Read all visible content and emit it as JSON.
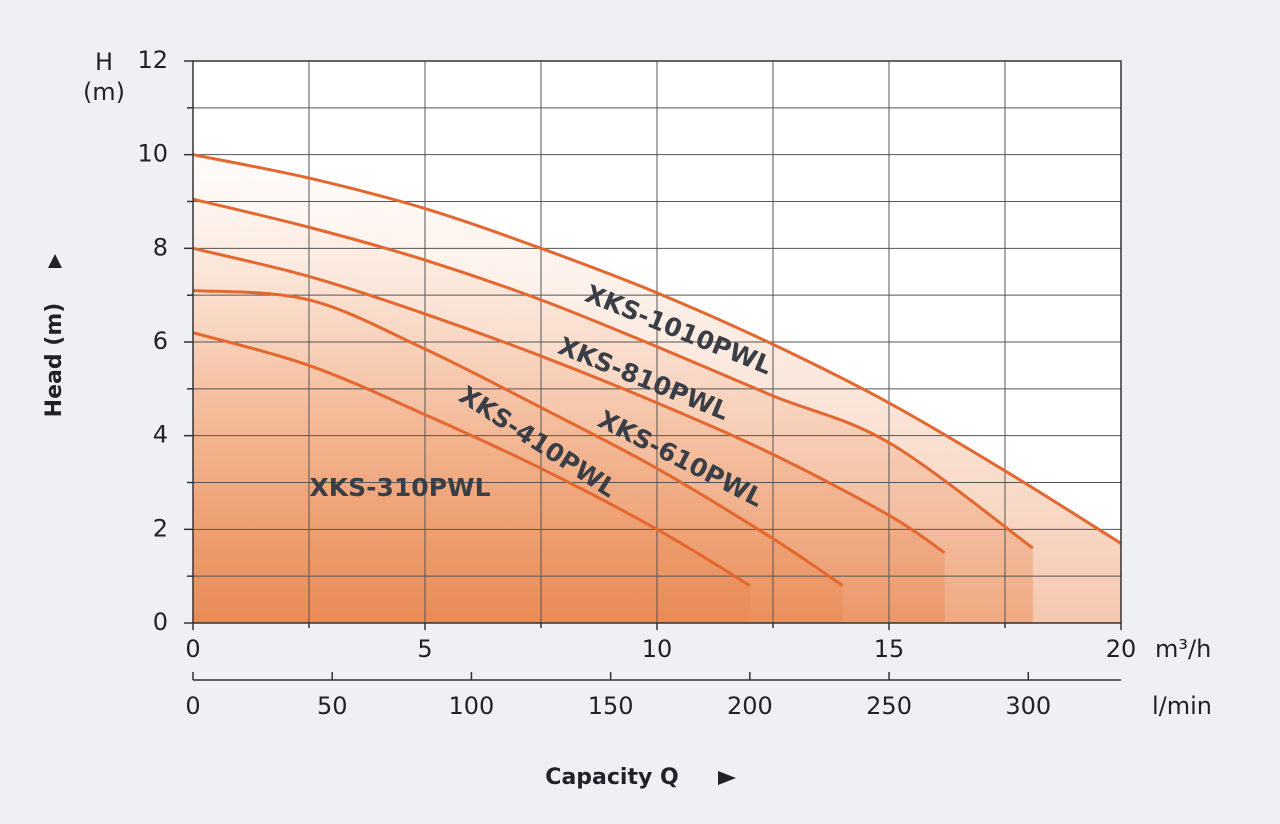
{
  "chart_data": {
    "type": "line",
    "y_label_top": "H",
    "y_unit_top": "(m)",
    "y_label": "Head (m)",
    "x_label": "Capacity Q",
    "x_unit": "m³/h",
    "x2_unit": "l/min",
    "xlim": [
      0,
      20
    ],
    "xticks": [
      0,
      5,
      10,
      15,
      20
    ],
    "x_minor_ticks": [
      2.5,
      7.5,
      12.5,
      17.5
    ],
    "ylim": [
      0,
      12
    ],
    "yticks": [
      0,
      2,
      4,
      6,
      8,
      10,
      12
    ],
    "y_minor_ticks": [
      1,
      3,
      5,
      7,
      9,
      11
    ],
    "x2lim": [
      0,
      333.3
    ],
    "x2ticks": [
      0,
      50,
      100,
      150,
      200,
      250,
      300
    ],
    "grid": true,
    "series": [
      {
        "name": "XKS-1010PWL",
        "color": "#e4672f",
        "x": [
          0,
          2.5,
          5,
          7.5,
          10,
          12.5,
          15,
          17.5,
          20
        ],
        "values": [
          10,
          9.5,
          8.85,
          8.0,
          7.05,
          5.95,
          4.7,
          3.25,
          1.7
        ]
      },
      {
        "name": "XKS-810PWL",
        "color": "#e4672f",
        "x": [
          0,
          2.5,
          5,
          7.5,
          10,
          12.5,
          15,
          18.1
        ],
        "values": [
          9.05,
          8.45,
          7.75,
          6.9,
          5.9,
          4.85,
          3.85,
          1.6
        ]
      },
      {
        "name": "XKS-610PWL",
        "color": "#e4672f",
        "x": [
          0,
          2.5,
          5,
          7.5,
          10,
          12.5,
          15,
          16.2
        ],
        "values": [
          8.0,
          7.4,
          6.6,
          5.7,
          4.7,
          3.6,
          2.3,
          1.5
        ]
      },
      {
        "name": "XKS-410PWL",
        "color": "#e4672f",
        "x": [
          0,
          2.5,
          5,
          7.5,
          10,
          12.5,
          14
        ],
        "values": [
          7.1,
          6.9,
          5.85,
          4.6,
          3.3,
          1.8,
          0.8
        ]
      },
      {
        "name": "XKS-310PWL",
        "color": "#e4672f",
        "x": [
          0,
          2.5,
          5,
          7.5,
          10,
          12
        ],
        "values": [
          6.2,
          5.5,
          4.45,
          3.3,
          2.0,
          0.8
        ]
      }
    ]
  }
}
